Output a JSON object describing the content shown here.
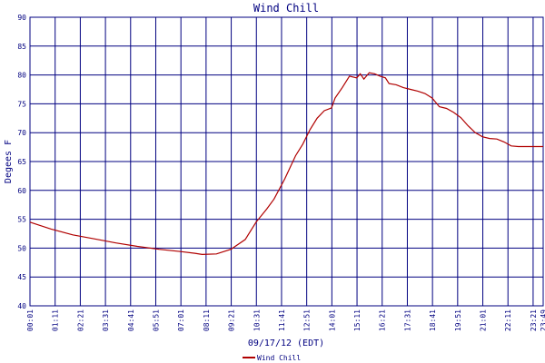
{
  "chart_data": {
    "type": "line",
    "title": "Wind Chill",
    "x_label": "09/17/12 (EDT)",
    "y_label": "Degees F",
    "xlim": [
      1,
      1429
    ],
    "ylim": [
      40,
      90
    ],
    "yticks": [
      40,
      45,
      50,
      55,
      60,
      65,
      70,
      75,
      80,
      85,
      90
    ],
    "xticks": [
      {
        "value": 1,
        "label": "00:01"
      },
      {
        "value": 71,
        "label": "01:11"
      },
      {
        "value": 141,
        "label": "02:21"
      },
      {
        "value": 211,
        "label": "03:31"
      },
      {
        "value": 281,
        "label": "04:41"
      },
      {
        "value": 351,
        "label": "05:51"
      },
      {
        "value": 421,
        "label": "07:01"
      },
      {
        "value": 491,
        "label": "08:11"
      },
      {
        "value": 561,
        "label": "09:21"
      },
      {
        "value": 631,
        "label": "10:31"
      },
      {
        "value": 701,
        "label": "11:41"
      },
      {
        "value": 771,
        "label": "12:51"
      },
      {
        "value": 841,
        "label": "14:01"
      },
      {
        "value": 911,
        "label": "15:11"
      },
      {
        "value": 981,
        "label": "16:21"
      },
      {
        "value": 1051,
        "label": "17:31"
      },
      {
        "value": 1121,
        "label": "18:41"
      },
      {
        "value": 1191,
        "label": "19:51"
      },
      {
        "value": 1261,
        "label": "21:01"
      },
      {
        "value": 1331,
        "label": "22:11"
      },
      {
        "value": 1401,
        "label": "23:21"
      },
      {
        "value": 1429,
        "label": "23:49"
      }
    ],
    "grid": true,
    "legend": "bottom",
    "x": [
      1,
      60,
      120,
      180,
      240,
      300,
      360,
      420,
      460,
      480,
      520,
      560,
      600,
      630,
      660,
      680,
      710,
      740,
      760,
      780,
      800,
      820,
      840,
      850,
      870,
      890,
      910,
      920,
      930,
      945,
      960,
      975,
      990,
      1000,
      1020,
      1040,
      1060,
      1080,
      1100,
      1120,
      1140,
      1160,
      1180,
      1200,
      1220,
      1240,
      1260,
      1280,
      1300,
      1320,
      1340,
      1360,
      1400,
      1429
    ],
    "series": [
      {
        "name": "Wind Chill",
        "color": "#b00000",
        "values": [
          54.5,
          53.3,
          52.3,
          51.6,
          50.9,
          50.3,
          49.8,
          49.4,
          49.1,
          48.9,
          49.0,
          49.8,
          51.5,
          54.5,
          56.8,
          58.5,
          62.0,
          66.0,
          68.0,
          70.5,
          72.5,
          73.8,
          74.3,
          76,
          77.8,
          79.8,
          79.5,
          80.2,
          79.3,
          80.4,
          80.2,
          79.8,
          79.5,
          78.5,
          78.3,
          77.8,
          77.5,
          77.2,
          76.8,
          76,
          74.5,
          74.2,
          73.5,
          72.6,
          71.2,
          70,
          69.3,
          69,
          68.9,
          68.4,
          67.7,
          67.6,
          67.6,
          67.6
        ]
      }
    ]
  }
}
